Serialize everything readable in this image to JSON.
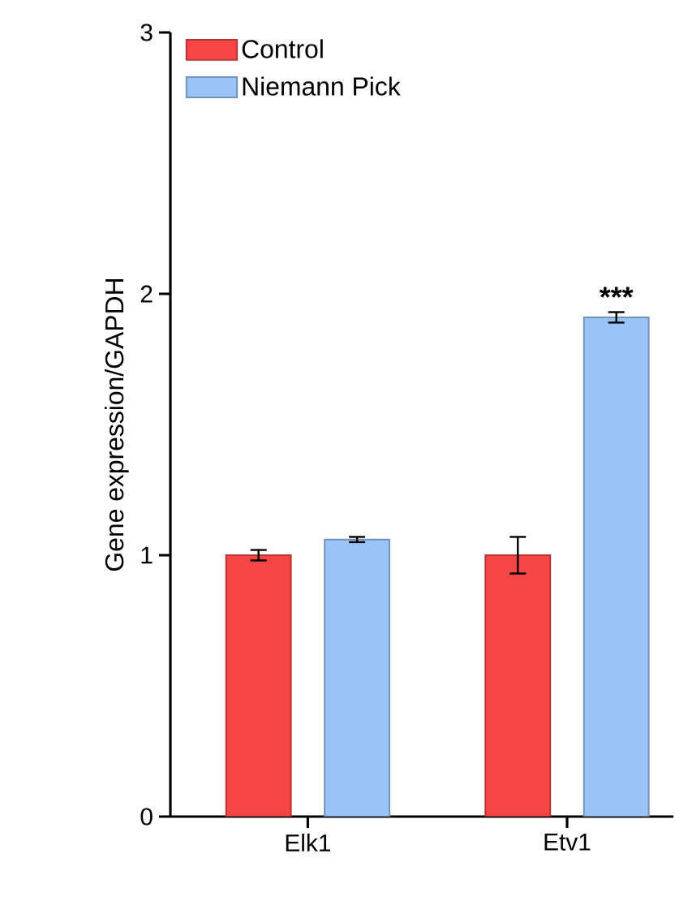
{
  "chart_data": {
    "type": "bar",
    "ylabel": "Gene expression/GAPDH",
    "categories": [
      "Elk1",
      "Etv1"
    ],
    "series": [
      {
        "name": "Control",
        "color": "#f54545",
        "values": [
          1.0,
          1.0
        ],
        "errors": [
          0.02,
          0.07
        ]
      },
      {
        "name": "Niemann Pick",
        "color": "#9ac4f7",
        "values": [
          1.06,
          1.91
        ],
        "errors": [
          0.01,
          0.02
        ]
      }
    ],
    "ylim": [
      0,
      3
    ],
    "yticks": [
      0,
      1,
      2,
      3
    ],
    "legend": "top left",
    "grid": false,
    "annotations": [
      "***"
    ]
  }
}
